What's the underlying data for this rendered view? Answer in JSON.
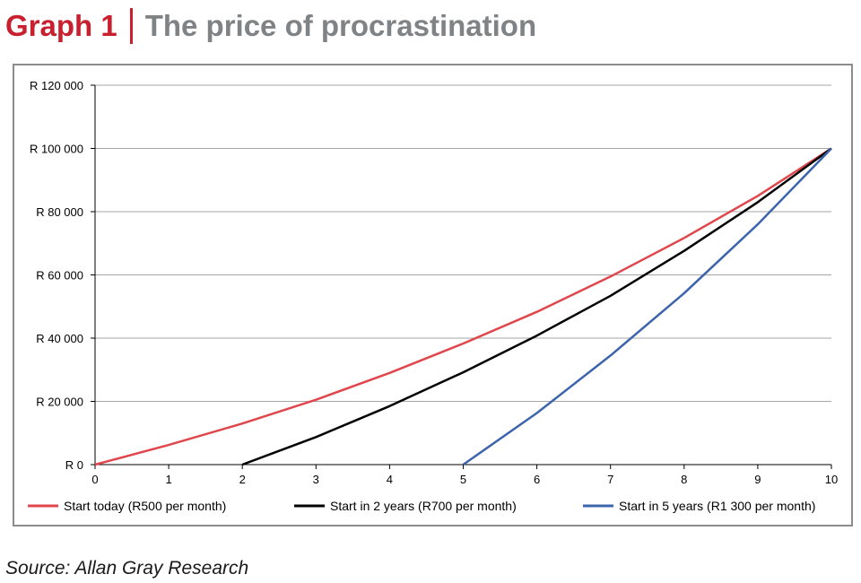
{
  "header": {
    "label": "Graph 1",
    "text": "The price of procrastination"
  },
  "footer": {
    "source": "Source: Allan Gray Research"
  },
  "chart_data": {
    "type": "line",
    "title": "",
    "xlabel": "",
    "ylabel": "",
    "xlim": [
      0,
      10
    ],
    "ylim": [
      0,
      120000
    ],
    "x_ticks": [
      0,
      1,
      2,
      3,
      4,
      5,
      6,
      7,
      8,
      9,
      10
    ],
    "x_tick_labels": [
      "0",
      "1",
      "2",
      "3",
      "4",
      "5",
      "6",
      "7",
      "8",
      "9",
      "10"
    ],
    "y_ticks": [
      0,
      20000,
      40000,
      60000,
      80000,
      100000,
      120000
    ],
    "y_tick_labels": [
      "R  0",
      "R 20 000",
      "R 40 000",
      "R 60 000",
      "R 80 000",
      "R 100 000",
      "R 120 000"
    ],
    "grid": true,
    "legend_position": "bottom",
    "series": [
      {
        "name": "Start today (R500 per month)",
        "color": "#e0474c",
        "x": [
          0,
          1,
          2,
          3,
          4,
          5,
          6,
          7,
          8,
          9,
          10
        ],
        "y": [
          0,
          6200,
          13000,
          20500,
          29000,
          38300,
          48300,
          59500,
          71700,
          85000,
          100000
        ]
      },
      {
        "name": "Start in 2 years (R700 per month)",
        "color": "#000000",
        "x": [
          2,
          3,
          4,
          5,
          6,
          7,
          8,
          9,
          10
        ],
        "y": [
          0,
          8700,
          18500,
          29200,
          40800,
          53400,
          67600,
          83000,
          100000
        ]
      },
      {
        "name": "Start in 5 years (R1 300 per month)",
        "color": "#3b64ad",
        "x": [
          5,
          6,
          7,
          8,
          9,
          10
        ],
        "y": [
          0,
          16300,
          34500,
          54200,
          76000,
          100000
        ]
      }
    ]
  }
}
